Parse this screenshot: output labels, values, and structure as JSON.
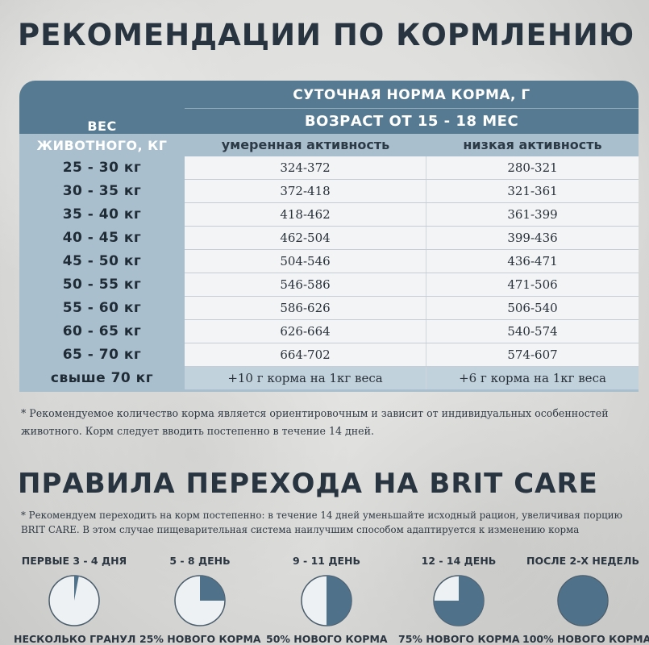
{
  "titles": {
    "feeding": "РЕКОМЕНДАЦИИ ПО КОРМЛЕНИЮ",
    "transition": "ПРАВИЛА ПЕРЕХОДА НА BRIT CARE"
  },
  "table": {
    "daily_norm": "СУТОЧНАЯ НОРМА КОРМА, Г",
    "age": "ВОЗРАСТ ОТ 15 - 18 МЕС",
    "weight_header": "ВЕС\nЖИВОТНОГО, КГ",
    "col_moderate": "умеренная активность",
    "col_low": "низкая активность",
    "rows": [
      {
        "weight": "25 - 30 кг",
        "moderate": "324-372",
        "low": "280-321"
      },
      {
        "weight": "30 - 35 кг",
        "moderate": "372-418",
        "low": "321-361"
      },
      {
        "weight": "35 - 40 кг",
        "moderate": "418-462",
        "low": "361-399"
      },
      {
        "weight": "40 - 45 кг",
        "moderate": "462-504",
        "low": "399-436"
      },
      {
        "weight": "45 - 50 кг",
        "moderate": "504-546",
        "low": "436-471"
      },
      {
        "weight": "50 - 55 кг",
        "moderate": "546-586",
        "low": "471-506"
      },
      {
        "weight": "55 - 60 кг",
        "moderate": "586-626",
        "low": "506-540"
      },
      {
        "weight": "60 - 65 кг",
        "moderate": "626-664",
        "low": "540-574"
      },
      {
        "weight": "65 - 70 кг",
        "moderate": "664-702",
        "low": "574-607"
      },
      {
        "weight": "свыше 70 кг",
        "moderate": "+10 г корма на 1кг веса",
        "low": "+6 г корма на 1кг веса"
      }
    ]
  },
  "notes": {
    "feeding": "* Рекомендуемое количество корма является ориентировочным и зависит от индивидуальных особенностей животного. Корм следует вводить постепенно в течение 14 дней.",
    "transition": "* Рекомендуем переходить на корм постепенно: в течение 14 дней уменьшайте исходный рацион, увеличивая порцию BRIT CARE. В этом случае пищеварительная система наилучшим способом адаптируется к изменению корма"
  },
  "steps": [
    {
      "period": "ПЕРВЫЕ 3 - 4 ДНЯ",
      "label": "НЕСКОЛЬКО ГРАНУЛ",
      "fraction": 0.03
    },
    {
      "period": "5 - 8 ДЕНЬ",
      "label": "25% НОВОГО КОРМА",
      "fraction": 0.25
    },
    {
      "period": "9 - 11 ДЕНЬ",
      "label": "50% НОВОГО КОРМА",
      "fraction": 0.5
    },
    {
      "period": "12 - 14 ДЕНЬ",
      "label": "75% НОВОГО КОРМА",
      "fraction": 0.75
    },
    {
      "period": "ПОСЛЕ 2-Х НЕДЕЛЬ",
      "label": "100% НОВОГО КОРМА",
      "fraction": 1.0
    }
  ],
  "colors": {
    "accent": "#557a91",
    "light_accent": "#a9bfcd",
    "fill": "#4f7189",
    "title": "#283440"
  }
}
